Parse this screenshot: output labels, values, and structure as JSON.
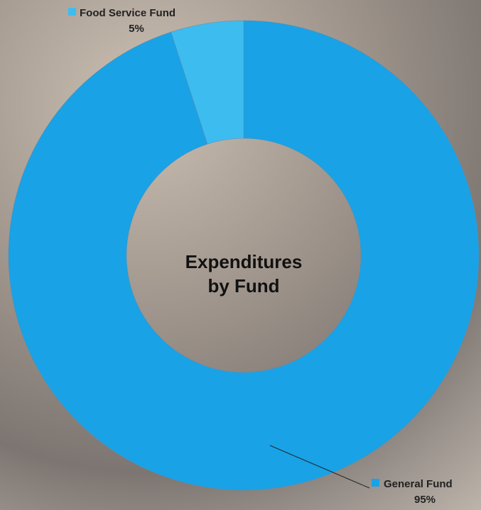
{
  "chart_data": {
    "type": "donut",
    "title": "Expenditures by Fund",
    "categories": [
      "General Fund",
      "Food Service Fund"
    ],
    "values": [
      95,
      5
    ],
    "value_labels": [
      "95%",
      "5%"
    ],
    "colors": [
      "#19a2e6",
      "#3dbcf0"
    ]
  }
}
